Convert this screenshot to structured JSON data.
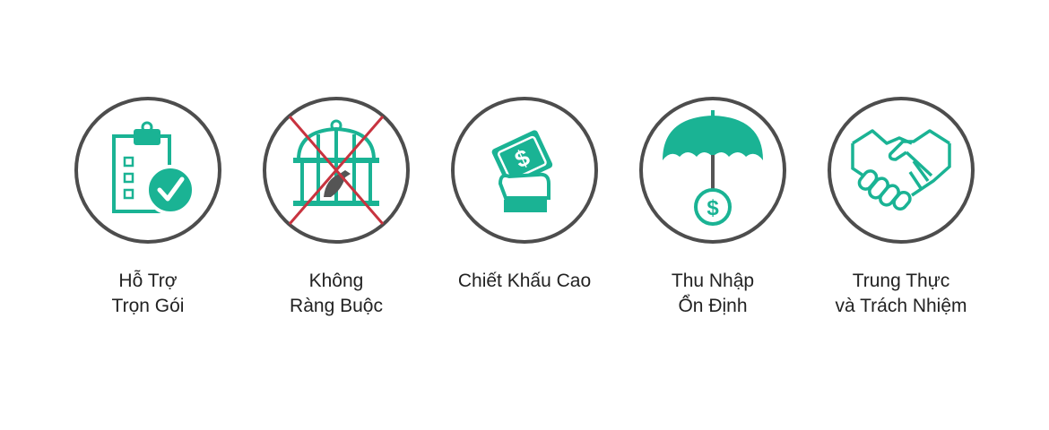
{
  "colors": {
    "accent": "#1ab394",
    "circle_border": "#4d4d4d",
    "cross": "#c8333f",
    "bird": "#555555"
  },
  "features": [
    {
      "icon": "clipboard-check-icon",
      "label_lines": [
        "Hỗ Trợ",
        "Trọn Gói"
      ]
    },
    {
      "icon": "caged-bird-crossed-icon",
      "label_lines": [
        "Không",
        "Ràng Buộc"
      ]
    },
    {
      "icon": "hand-money-icon",
      "label_lines": [
        "Chiết Khấu Cao",
        ""
      ]
    },
    {
      "icon": "umbrella-dollar-icon",
      "label_lines": [
        "Thu Nhập",
        "Ổn Định"
      ]
    },
    {
      "icon": "handshake-icon",
      "label_lines": [
        "Trung Thực",
        "và Trách Nhiệm"
      ]
    }
  ]
}
